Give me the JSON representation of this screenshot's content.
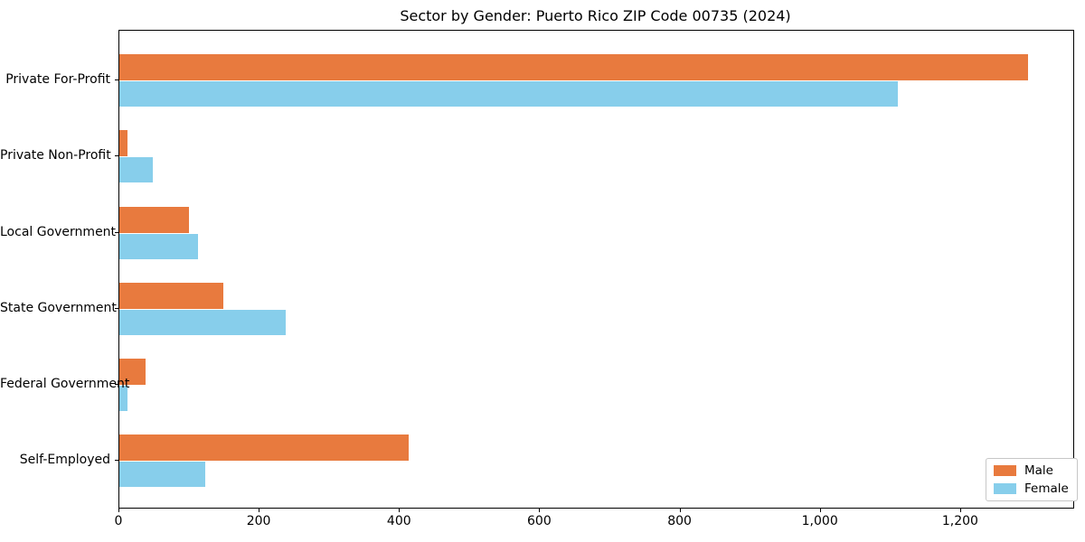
{
  "chart_data": {
    "type": "bar",
    "orientation": "horizontal",
    "title": "Sector by Gender: Puerto Rico ZIP Code 00735 (2024)",
    "categories": [
      "Private For-Profit",
      "Private Non-Profit",
      "Local Government",
      "State Government",
      "Federal Government",
      "Self-Employed"
    ],
    "series": [
      {
        "name": "Male",
        "color": "#e87a3e",
        "values": [
          1295,
          12,
          99,
          148,
          37,
          412
        ]
      },
      {
        "name": "Female",
        "color": "#87ceeb",
        "values": [
          1110,
          47,
          112,
          237,
          12,
          123
        ]
      }
    ],
    "xlabel": "",
    "ylabel": "",
    "xlim": [
      0,
      1360
    ],
    "xticks": [
      0,
      200,
      400,
      600,
      800,
      1000,
      1200
    ],
    "xtick_labels": [
      "0",
      "200",
      "400",
      "600",
      "800",
      "1,000",
      "1,200"
    ],
    "grid": false,
    "legend": {
      "position": "lower right"
    },
    "colors": {
      "male": "#e87a3e",
      "female": "#87ceeb",
      "axis": "#000000"
    }
  }
}
